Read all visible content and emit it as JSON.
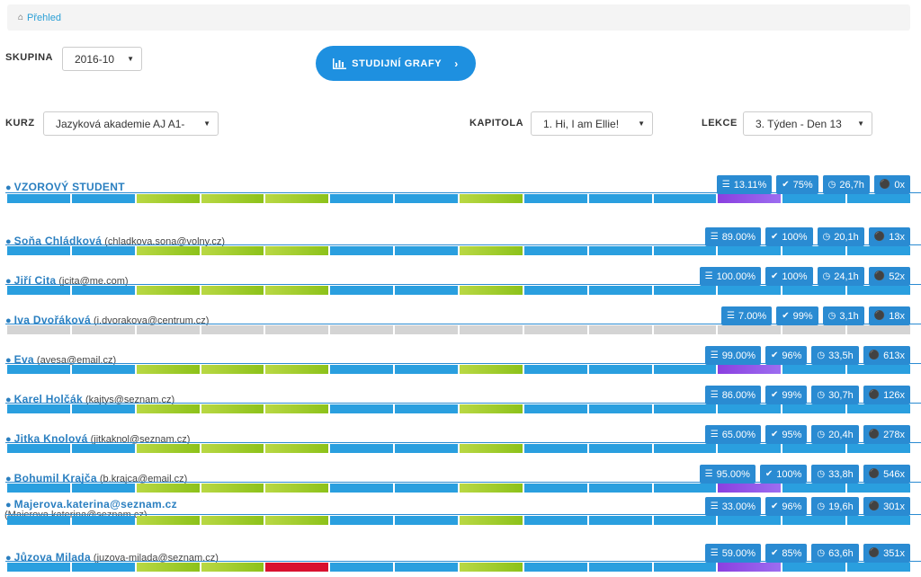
{
  "breadcrumb": {
    "home_icon": "home-icon",
    "label": "Přehled"
  },
  "filters": {
    "skupina_label": "SKUPINA",
    "skupina_value": "2016-10",
    "kurz_label": "KURZ",
    "kurz_value": "Jazyková akademie AJ A1-",
    "kapitola_label": "KAPITOLA",
    "kapitola_value": "1. Hi, I am Ellie!",
    "lekce_label": "LEKCE",
    "lekce_value": "3. Týden - Den 13"
  },
  "graphs_button": {
    "label": "STUDIJNÍ GRAFY",
    "icon": "bar-chart-icon"
  },
  "colors": {
    "blue": "#2a9fdf",
    "green": "#8cc21a",
    "purple": "#8b3fe0",
    "red": "#d9112f",
    "gray": "#d4d4d4"
  },
  "students": [
    {
      "name": "VZOROVÝ STUDENT",
      "email": "",
      "email_line2": "",
      "progress": "13.11%",
      "likes": "75%",
      "time": "26,7h",
      "mic": "0x",
      "segments": [
        "blue",
        "blue",
        "green",
        "green",
        "green",
        "blue",
        "blue",
        "green",
        "blue",
        "blue",
        "blue",
        "purple",
        "blue",
        "blue"
      ]
    },
    {
      "name": "Soňa Chládková",
      "email": "(chladkova.sona@volny.cz)",
      "email_line2": "",
      "progress": "89.00%",
      "likes": "100%",
      "time": "20,1h",
      "mic": "13x",
      "segments": [
        "blue",
        "blue",
        "green",
        "green",
        "green",
        "blue",
        "blue",
        "green",
        "blue",
        "blue",
        "blue",
        "blue",
        "blue",
        "blue"
      ]
    },
    {
      "name": "Jiří Cita",
      "email": "(jcita@me.com)",
      "email_line2": "",
      "progress": "100.00%",
      "likes": "100%",
      "time": "24,1h",
      "mic": "52x",
      "segments": [
        "blue",
        "blue",
        "green",
        "green",
        "green",
        "blue",
        "blue",
        "green",
        "blue",
        "blue",
        "blue",
        "blue",
        "blue",
        "blue"
      ]
    },
    {
      "name": "Iva Dvořáková",
      "email": "(i.dvorakova@centrum.cz)",
      "email_line2": "",
      "progress": "7.00%",
      "likes": "99%",
      "time": "3,1h",
      "mic": "18x",
      "segments": [
        "gray",
        "gray",
        "gray",
        "gray",
        "gray",
        "gray",
        "gray",
        "gray",
        "gray",
        "gray",
        "gray",
        "gray",
        "gray",
        "gray"
      ]
    },
    {
      "name": "Eva",
      "email": "(avesa@email.cz)",
      "email_line2": "",
      "progress": "99.00%",
      "likes": "96%",
      "time": "33,5h",
      "mic": "613x",
      "segments": [
        "blue",
        "blue",
        "green",
        "green",
        "green",
        "blue",
        "blue",
        "green",
        "blue",
        "blue",
        "blue",
        "purple",
        "blue",
        "blue"
      ]
    },
    {
      "name": "Karel Holčák",
      "email": "(kajtys@seznam.cz)",
      "email_line2": "",
      "progress": "86.00%",
      "likes": "99%",
      "time": "30,7h",
      "mic": "126x",
      "segments": [
        "blue",
        "blue",
        "green",
        "green",
        "green",
        "blue",
        "blue",
        "green",
        "blue",
        "blue",
        "blue",
        "blue",
        "blue",
        "blue"
      ]
    },
    {
      "name": "Jitka Knolová",
      "email": "(jitkaknol@seznam.cz)",
      "email_line2": "",
      "progress": "65.00%",
      "likes": "95%",
      "time": "20,4h",
      "mic": "278x",
      "segments": [
        "blue",
        "blue",
        "green",
        "green",
        "green",
        "blue",
        "blue",
        "green",
        "blue",
        "blue",
        "blue",
        "blue",
        "blue",
        "blue"
      ]
    },
    {
      "name": "Bohumil Krajča",
      "email": "(b.krajca@email.cz)",
      "email_line2": "",
      "progress": "95.00%",
      "likes": "100%",
      "time": "33,8h",
      "mic": "546x",
      "segments": [
        "blue",
        "blue",
        "green",
        "green",
        "green",
        "blue",
        "blue",
        "green",
        "blue",
        "blue",
        "blue",
        "purple",
        "blue",
        "blue"
      ]
    },
    {
      "name": "Majerova.katerina@seznam.cz",
      "email": "",
      "email_line2": "(Majerova.katerina@seznam.cz)",
      "progress": "33.00%",
      "likes": "96%",
      "time": "19,6h",
      "mic": "301x",
      "segments": [
        "blue",
        "blue",
        "green",
        "green",
        "green",
        "blue",
        "blue",
        "green",
        "blue",
        "blue",
        "blue",
        "blue",
        "blue",
        "blue"
      ]
    },
    {
      "name": "Jůzova Milada",
      "email": "(juzova-milada@seznam.cz)",
      "email_line2": "",
      "progress": "59.00%",
      "likes": "85%",
      "time": "63,6h",
      "mic": "351x",
      "segments": [
        "blue",
        "blue",
        "green",
        "green",
        "red",
        "blue",
        "blue",
        "green",
        "blue",
        "blue",
        "blue",
        "purple",
        "blue",
        "blue"
      ]
    }
  ]
}
